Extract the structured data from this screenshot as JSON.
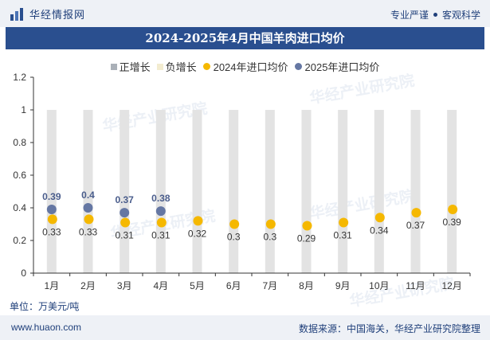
{
  "header": {
    "brand": "华经情报网",
    "slogan_left": "专业严谨",
    "slogan_right": "客观科学"
  },
  "title": "2024-2025年4月中国羊肉进口均价",
  "legend": [
    {
      "label": "正增长",
      "color": "#aab0b8",
      "shape": "square"
    },
    {
      "label": "负增长",
      "color": "#f3ecd0",
      "shape": "square"
    },
    {
      "label": "2024年进口均价",
      "color": "#f5b800",
      "shape": "circle"
    },
    {
      "label": "2025年进口均价",
      "color": "#6577a3",
      "shape": "circle"
    }
  ],
  "chart_data": {
    "type": "scatter",
    "categories": [
      "1月",
      "2月",
      "3月",
      "4月",
      "5月",
      "6月",
      "7月",
      "8月",
      "9月",
      "10月",
      "11月",
      "12月"
    ],
    "series": [
      {
        "name": "2024年进口均价",
        "color": "#f5b800",
        "values": [
          0.33,
          0.33,
          0.31,
          0.31,
          0.32,
          0.3,
          0.3,
          0.29,
          0.31,
          0.34,
          0.37,
          0.39
        ]
      },
      {
        "name": "2025年进口均价",
        "color": "#6577a3",
        "values": [
          0.39,
          0.4,
          0.37,
          0.38
        ]
      }
    ],
    "growth_bars": {
      "positive_color": "#e3e3e3",
      "value": 1
    },
    "yticks": [
      "0",
      "0.2",
      "0.4",
      "0.6",
      "0.8",
      "1",
      "1.2"
    ],
    "ylim": [
      0,
      1.2
    ],
    "legend_position": "top",
    "grid": false
  },
  "unit_label": "单位：万美元/吨",
  "footer": {
    "url": "www.huaon.com",
    "source": "数据来源：中国海关，华经产业研究院整理"
  },
  "watermark": "华经产业研究院"
}
